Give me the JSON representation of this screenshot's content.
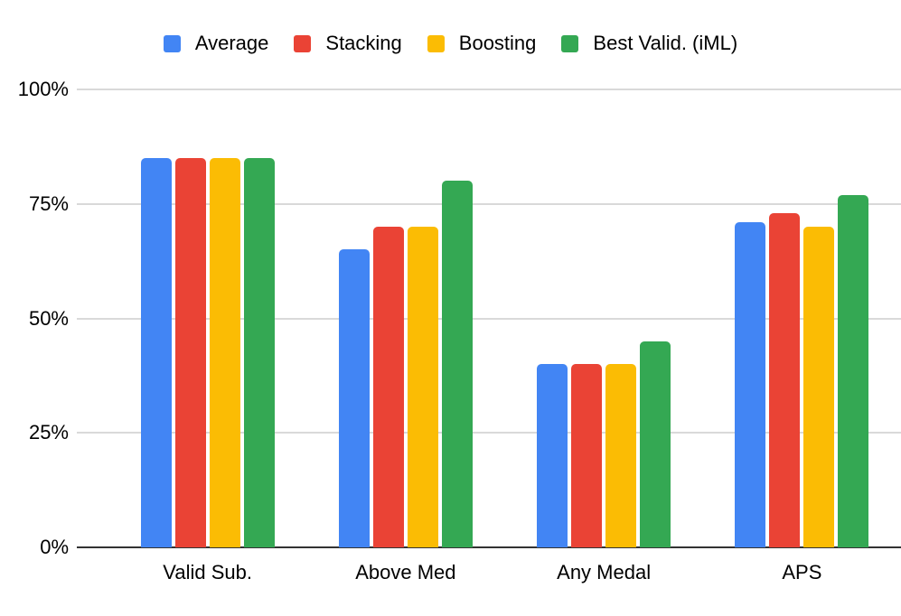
{
  "chart_data": {
    "type": "bar",
    "title": "",
    "xlabel": "",
    "ylabel": "",
    "categories": [
      "Valid Sub.",
      "Above Med",
      "Any Medal",
      "APS"
    ],
    "series": [
      {
        "name": "Average",
        "color": "#4285F4",
        "values": [
          85,
          65,
          40,
          71
        ]
      },
      {
        "name": "Stacking",
        "color": "#EA4335",
        "values": [
          85,
          70,
          40,
          73
        ]
      },
      {
        "name": "Boosting",
        "color": "#FBBC04",
        "values": [
          85,
          70,
          40,
          70
        ]
      },
      {
        "name": "Best Valid. (iML)",
        "color": "#34A853",
        "values": [
          85,
          80,
          45,
          77
        ]
      }
    ],
    "ylim": [
      0,
      100
    ],
    "yticks": [
      0,
      25,
      50,
      75,
      100
    ],
    "ytick_labels": [
      "0%",
      "25%",
      "50%",
      "75%",
      "100%"
    ],
    "grid": true,
    "legend_position": "top"
  },
  "colors": {
    "background": "#ffffff",
    "gridline": "#d9d9d9",
    "axis_line": "#333333",
    "text": "#000000"
  }
}
